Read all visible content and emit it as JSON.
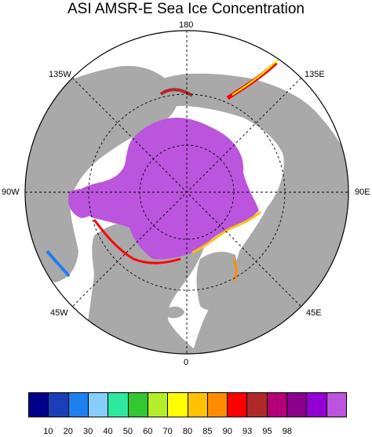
{
  "title": "ASI AMSR-E Sea Ice Concentration",
  "longitude_labels": {
    "top": "180",
    "bottom": "0",
    "left": "90W",
    "right": "90E",
    "upper_left": "135W",
    "upper_right": "135E",
    "lower_left": "45W",
    "lower_right": "45E"
  },
  "colors": {
    "ocean": "#ffffff",
    "land": "#a9a9a9",
    "ice_pack": "#bb55dd"
  },
  "legend": {
    "colors": [
      "#00008b",
      "#1a3fb8",
      "#1e7ff0",
      "#87cefa",
      "#2ee8a0",
      "#32c832",
      "#b4ee2a",
      "#ffff00",
      "#ffc200",
      "#ff8c00",
      "#ff0000",
      "#b02828",
      "#b40078",
      "#8b008b",
      "#9400d3",
      "#bb55dd"
    ],
    "tick_labels": [
      "10",
      "20",
      "30",
      "40",
      "50",
      "60",
      "70",
      "80",
      "85",
      "90",
      "93",
      "95",
      "98"
    ]
  }
}
